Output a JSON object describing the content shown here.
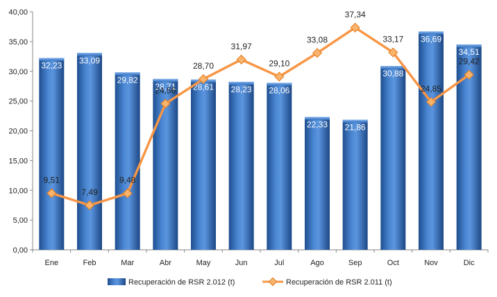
{
  "chart_data": {
    "type": "bar",
    "categories": [
      "Ene",
      "Feb",
      "Mar",
      "Abr",
      "May",
      "Jun",
      "Jul",
      "Ago",
      "Sep",
      "Oct",
      "Nov",
      "Dic"
    ],
    "series": [
      {
        "name": "Recuperación de RSR 2.012 (t)",
        "type": "bar",
        "values": [
          32.23,
          33.09,
          29.82,
          28.71,
          28.61,
          28.23,
          28.06,
          22.33,
          21.86,
          30.88,
          36.69,
          34.51
        ],
        "labels": [
          "32,23",
          "33,09",
          "29,82",
          "28,71",
          "28,61",
          "28,23",
          "28,06",
          "22,33",
          "21,86",
          "30,88",
          "36,69",
          "34,51"
        ]
      },
      {
        "name": "Recuperación de RSR 2.011 (t)",
        "type": "line",
        "values": [
          9.51,
          7.49,
          9.48,
          24.56,
          28.7,
          31.97,
          29.1,
          33.08,
          37.34,
          33.17,
          24.85,
          29.42
        ],
        "labels": [
          "9,51",
          "7,49",
          "9,48",
          "24,56",
          "28,70",
          "31,97",
          "29,10",
          "33,08",
          "37,34",
          "33,17",
          "24,85",
          "29,42"
        ]
      }
    ],
    "y_ticks": [
      "0,00",
      "5,00",
      "10,00",
      "15,00",
      "20,00",
      "25,00",
      "30,00",
      "35,00",
      "40,00"
    ],
    "ylim": [
      0,
      40
    ],
    "grid": false,
    "legend_position": "bottom",
    "colors": {
      "bar": "#3c78c4",
      "bar_light": "#6fa3e6",
      "bar_dark": "#1f4e8f",
      "line": "#f79646",
      "marker": "#f9b36a",
      "axis": "#868686"
    }
  }
}
